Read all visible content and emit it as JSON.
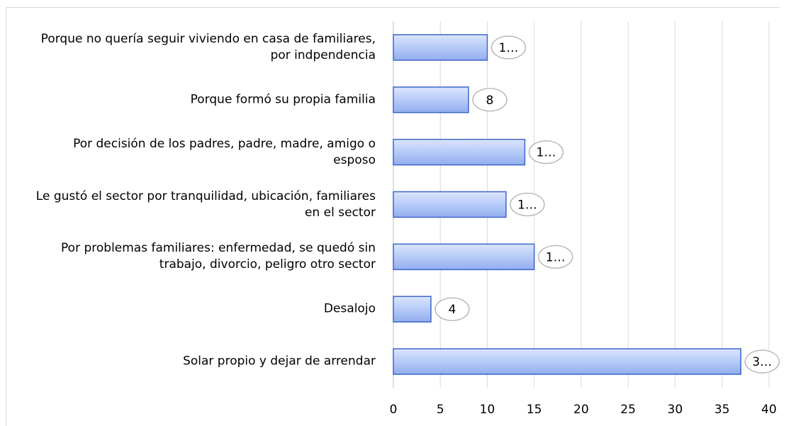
{
  "chart_data": {
    "type": "bar",
    "orientation": "horizontal",
    "categories": [
      "Porque no quería seguir viviendo en casa de familiares, por indpendencia",
      "Porque formó su propia familia",
      "Por decisión de los padres, padre, madre, amigo o esposo",
      "Le gustó el sector por tranquilidad, ubicación, familiares en el sector",
      "Por problemas familiares: enfermedad, se quedó sin trabajo, divorcio, peligro otro sector",
      "Desalojo",
      "Solar propio y dejar de arrendar"
    ],
    "values": [
      10,
      8,
      14,
      12,
      15,
      4,
      37
    ],
    "value_labels": [
      "1…",
      "8",
      "1…",
      "1…",
      "1…",
      "4",
      "3…"
    ],
    "color": "#a9c0f5",
    "xlim": [
      0,
      40
    ],
    "xticks": [
      0,
      5,
      10,
      15,
      20,
      25,
      30,
      35,
      40
    ],
    "grid": true
  }
}
